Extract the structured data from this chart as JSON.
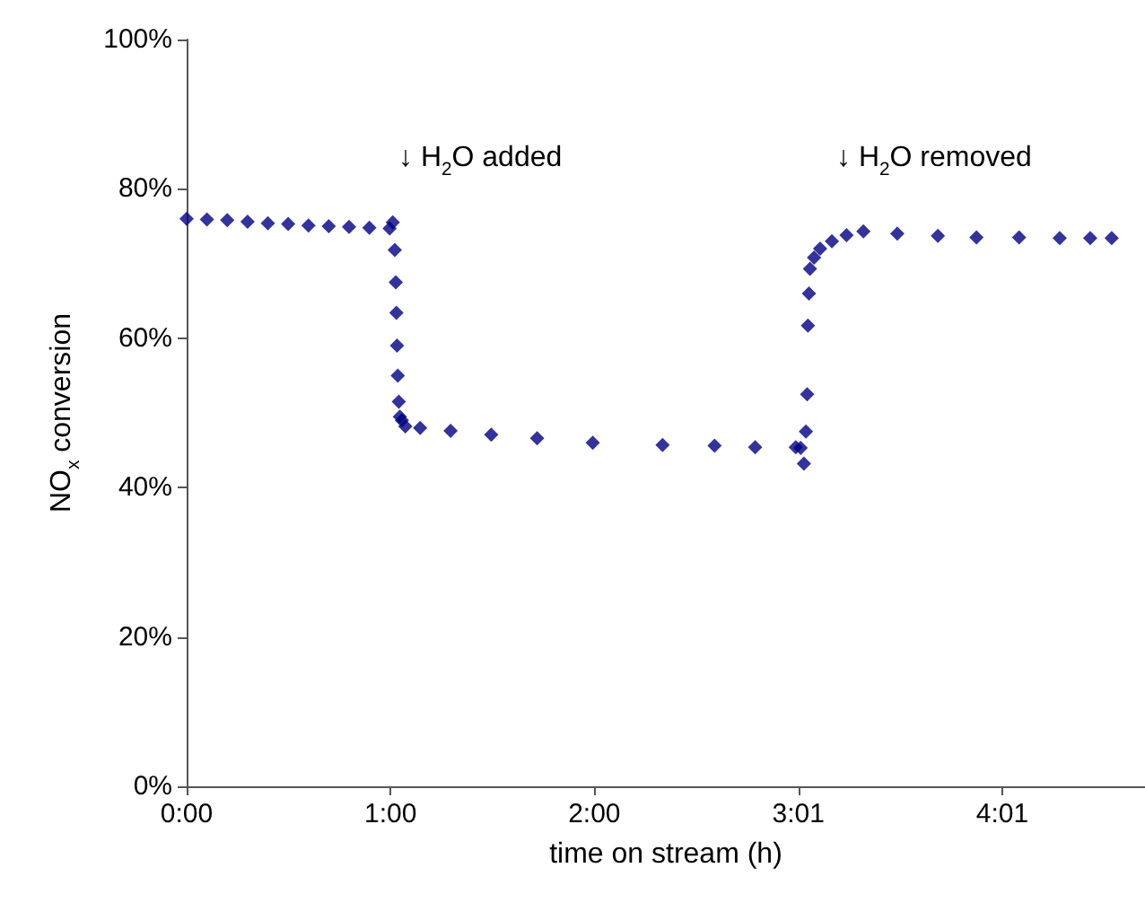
{
  "chart_data": {
    "type": "scatter",
    "xlabel": "time on stream (h)",
    "ylabel": "NO$_{x}$ conversion",
    "color": "#000080",
    "marker": "diamond",
    "grid": false,
    "x": [
      0,
      0.1,
      0.2,
      0.3,
      0.4,
      0.5,
      0.6,
      0.7,
      0.8,
      0.9,
      1.0,
      1.015,
      1.025,
      1.03,
      1.033,
      1.036,
      1.04,
      1.045,
      1.05,
      1.06,
      1.077,
      1.15,
      1.3,
      1.5,
      1.726,
      2.0,
      2.344,
      2.6,
      2.8,
      3.0,
      3.024,
      3.04,
      3.05,
      3.056,
      3.06,
      3.065,
      3.07,
      3.09,
      3.12,
      3.178,
      3.25,
      3.333,
      3.5,
      3.7,
      3.89,
      4.1,
      4.3,
      4.45,
      4.556
    ],
    "values": [
      76.0,
      75.9,
      75.8,
      75.6,
      75.4,
      75.3,
      75.1,
      75.0,
      74.9,
      74.8,
      74.7,
      75.5,
      71.8,
      67.5,
      63.4,
      59.0,
      55.0,
      51.5,
      49.5,
      49.0,
      48.2,
      48.0,
      47.6,
      47.1,
      46.6,
      46.0,
      45.7,
      45.6,
      45.4,
      45.4,
      45.3,
      43.2,
      47.5,
      52.5,
      61.7,
      66.0,
      69.3,
      70.8,
      72.0,
      73.0,
      73.8,
      74.3,
      74.0,
      73.7,
      73.5,
      73.5,
      73.4,
      73.4,
      73.4
    ],
    "xlim": [
      0,
      4.72
    ],
    "xticks": [
      {
        "value": 0,
        "label": "0:00"
      },
      {
        "value": 1.004,
        "label": "1:00"
      },
      {
        "value": 2.008,
        "label": "2:00"
      },
      {
        "value": 3.013,
        "label": "3:01"
      },
      {
        "value": 4.017,
        "label": "4:01"
      }
    ],
    "ylim": [
      0,
      100
    ],
    "yticks": [
      {
        "value": 0,
        "label": "0%"
      },
      {
        "value": 20,
        "label": "20%"
      },
      {
        "value": 40,
        "label": "40%"
      },
      {
        "value": 60,
        "label": "60%"
      },
      {
        "value": 80,
        "label": "80%"
      },
      {
        "value": 100,
        "label": "100%"
      }
    ],
    "annotations": [
      "↓ H$_{2}$O added",
      "↓ H$_{2}$O removed"
    ]
  }
}
